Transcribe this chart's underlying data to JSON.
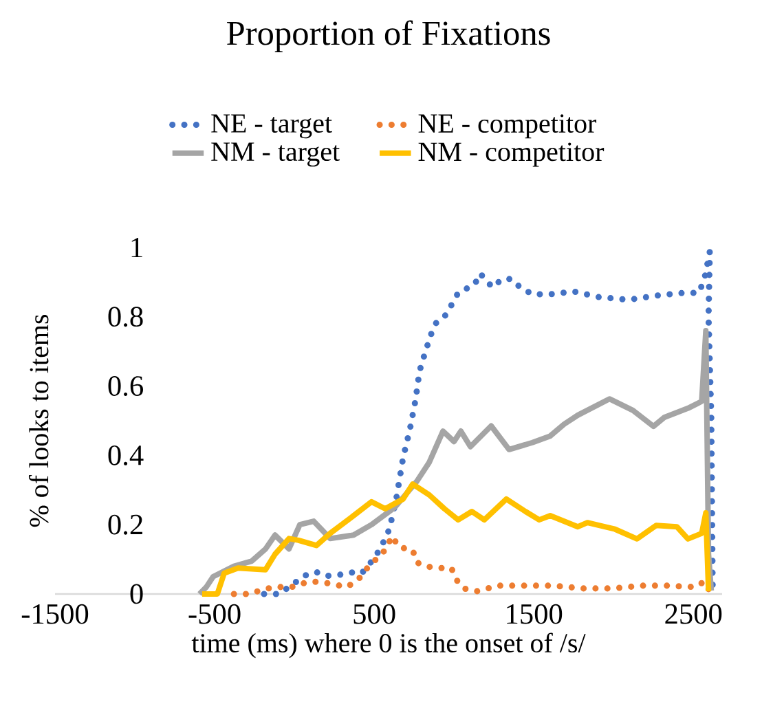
{
  "chart_data": {
    "type": "line",
    "title": "Proportion of Fixations",
    "xlabel": "time (ms) where 0 is the onset of /s/",
    "ylabel": "% of looks to items",
    "xlim": [
      -1500,
      2680
    ],
    "xticks": [
      -1500,
      -500,
      500,
      1500,
      2500
    ],
    "ylim": [
      0,
      1
    ],
    "yticks": [
      0,
      0.2,
      0.4,
      0.6,
      0.8,
      1
    ],
    "legend": "top",
    "series": [
      {
        "name": "NE - target",
        "color": "#4472c4",
        "line_style": "dotted",
        "x": [
          -190,
          -95,
          26,
          78,
          138,
          198,
          293,
          371,
          422,
          500,
          543,
          595,
          638,
          681,
          724,
          759,
          784,
          810,
          853,
          888,
          940,
          983,
          1026,
          1129,
          1164,
          1241,
          1302,
          1362,
          1414,
          1491,
          1603,
          1750,
          1905,
          2095,
          2267,
          2440,
          2534,
          2569,
          2603,
          2595,
          2612,
          2621
        ],
        "values": [
          0,
          0,
          0.04,
          0.056,
          0.063,
          0.052,
          0.056,
          0.063,
          0.06,
          0.103,
          0.135,
          0.187,
          0.274,
          0.393,
          0.476,
          0.56,
          0.643,
          0.683,
          0.746,
          0.782,
          0.8,
          0.833,
          0.869,
          0.893,
          0.925,
          0.885,
          0.909,
          0.909,
          0.885,
          0.865,
          0.865,
          0.873,
          0.857,
          0.849,
          0.861,
          0.869,
          0.869,
          0.909,
          0.988,
          0.8,
          0.512,
          0.008
        ]
      },
      {
        "name": "NE - competitor",
        "color": "#ed7d31",
        "line_style": "dotted",
        "x": [
          -379,
          -276,
          -207,
          -121,
          -17,
          26,
          112,
          198,
          328,
          397,
          457,
          509,
          569,
          612,
          655,
          741,
          767,
          828,
          914,
          983,
          1017,
          1060,
          1146,
          1276,
          1457,
          1629,
          1802,
          1991,
          2181,
          2336,
          2509,
          2569,
          2612
        ],
        "values": [
          0,
          0,
          0.012,
          0.02,
          0.02,
          0.028,
          0.036,
          0.032,
          0.02,
          0.04,
          0.075,
          0.099,
          0.127,
          0.167,
          0.135,
          0.127,
          0.091,
          0.079,
          0.075,
          0.075,
          0.04,
          0.016,
          0.008,
          0.024,
          0.024,
          0.024,
          0.016,
          0.016,
          0.024,
          0.024,
          0.02,
          0.036,
          0
        ]
      },
      {
        "name": "NM - target",
        "color": "#a5a5a5",
        "line_style": "solid",
        "x": [
          -595,
          -552,
          -509,
          -379,
          -267,
          -181,
          -121,
          -34,
          34,
          121,
          224,
          371,
          483,
          629,
          767,
          845,
          931,
          1000,
          1043,
          1103,
          1233,
          1345,
          1491,
          1603,
          1690,
          1776,
          1974,
          2121,
          2250,
          2319,
          2466,
          2552,
          2578,
          2595,
          2612
        ],
        "values": [
          0,
          0.02,
          0.05,
          0.08,
          0.095,
          0.13,
          0.17,
          0.13,
          0.2,
          0.21,
          0.16,
          0.17,
          0.2,
          0.25,
          0.325,
          0.38,
          0.47,
          0.44,
          0.47,
          0.425,
          0.485,
          0.417,
          0.437,
          0.456,
          0.49,
          0.516,
          0.563,
          0.53,
          0.484,
          0.51,
          0.536,
          0.556,
          0.76,
          0.115,
          0.01
        ]
      },
      {
        "name": "NM - competitor",
        "color": "#ffc000",
        "line_style": "solid",
        "x": [
          -578,
          -483,
          -440,
          -353,
          -181,
          -121,
          -34,
          26,
          138,
          224,
          371,
          483,
          569,
          681,
          741,
          845,
          940,
          1026,
          1112,
          1190,
          1328,
          1448,
          1534,
          1603,
          1776,
          1836,
          2009,
          2147,
          2267,
          2397,
          2466,
          2552,
          2578,
          2595
        ],
        "values": [
          0,
          0,
          0.06,
          0.075,
          0.07,
          0.115,
          0.16,
          0.155,
          0.14,
          0.175,
          0.226,
          0.266,
          0.246,
          0.274,
          0.317,
          0.286,
          0.246,
          0.214,
          0.238,
          0.214,
          0.274,
          0.238,
          0.214,
          0.226,
          0.194,
          0.206,
          0.187,
          0.159,
          0.198,
          0.194,
          0.159,
          0.175,
          0.234,
          0.008
        ]
      }
    ]
  }
}
